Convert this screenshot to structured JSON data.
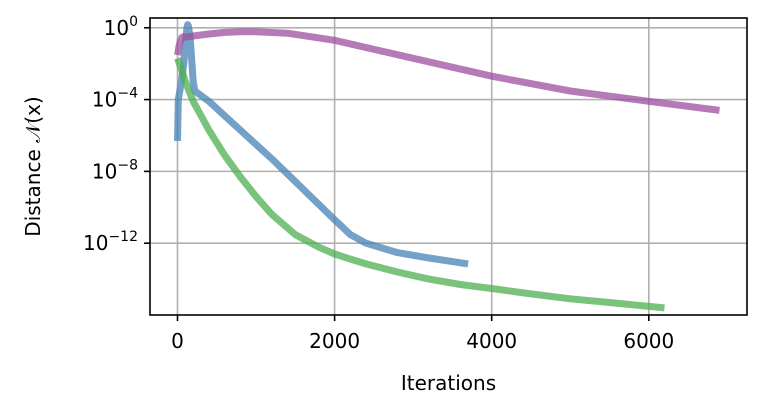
{
  "chart_data": {
    "type": "line",
    "title": "",
    "xlabel": "Iterations",
    "ylabel": "Distance 𝒩(x)",
    "x_scale": "linear",
    "y_scale": "log",
    "xlim": [
      -350,
      7250
    ],
    "ylim": [
      1e-16,
      3.5
    ],
    "grid": true,
    "legend": "none",
    "x_ticks": [
      {
        "value": 0,
        "label": "0"
      },
      {
        "value": 2000,
        "label": "2000"
      },
      {
        "value": 4000,
        "label": "4000"
      },
      {
        "value": 6000,
        "label": "6000"
      }
    ],
    "y_ticks": [
      {
        "value": 1,
        "base": "10",
        "exp": "0"
      },
      {
        "value": 0.0001,
        "base": "10",
        "exp": "−4"
      },
      {
        "value": 1e-08,
        "base": "10",
        "exp": "−8"
      },
      {
        "value": 1e-12,
        "base": "10",
        "exp": "−12"
      }
    ],
    "series": [
      {
        "color": "#4682b4",
        "x": [
          0,
          10,
          30,
          50,
          80,
          100,
          120,
          130,
          140,
          160,
          180,
          200,
          220,
          400,
          800,
          1200,
          1600,
          2000,
          2200,
          2400,
          2800,
          3200,
          3700
        ],
        "y": [
          5e-07,
          0.0001,
          0.0003,
          0.001,
          0.01,
          0.1,
          1.0,
          1.5,
          1.2,
          0.3,
          0.02,
          0.001,
          0.0003,
          8e-05,
          2e-06,
          5e-08,
          1e-09,
          2e-11,
          3e-12,
          1e-12,
          3e-13,
          1.5e-13,
          7e-14
        ]
      },
      {
        "color": "#9b4f9f",
        "x": [
          0,
          20,
          40,
          60,
          80,
          100,
          200,
          400,
          600,
          800,
          1000,
          1400,
          2000,
          3000,
          4000,
          5000,
          6000,
          6900
        ],
        "y": [
          0.03,
          0.1,
          0.2,
          0.3,
          0.32,
          0.3,
          0.35,
          0.45,
          0.55,
          0.6,
          0.6,
          0.5,
          0.2,
          0.02,
          0.002,
          0.0003,
          8e-05,
          2.5e-05
        ]
      },
      {
        "color": "#4caf50",
        "x": [
          0,
          50,
          100,
          200,
          400,
          600,
          800,
          1000,
          1200,
          1500,
          1800,
          2000,
          2200,
          2400,
          2800,
          3200,
          3600,
          4000,
          4500,
          5000,
          5500,
          6000,
          6200
        ],
        "y": [
          0.02,
          0.005,
          0.001,
          8e-05,
          2e-06,
          8e-08,
          5e-09,
          4e-10,
          4e-11,
          3e-12,
          6e-13,
          2.5e-13,
          1.3e-13,
          7e-14,
          2.5e-14,
          1e-14,
          5e-15,
          3e-15,
          1.5e-15,
          8e-16,
          5e-16,
          3e-16,
          2.5e-16
        ]
      }
    ]
  }
}
